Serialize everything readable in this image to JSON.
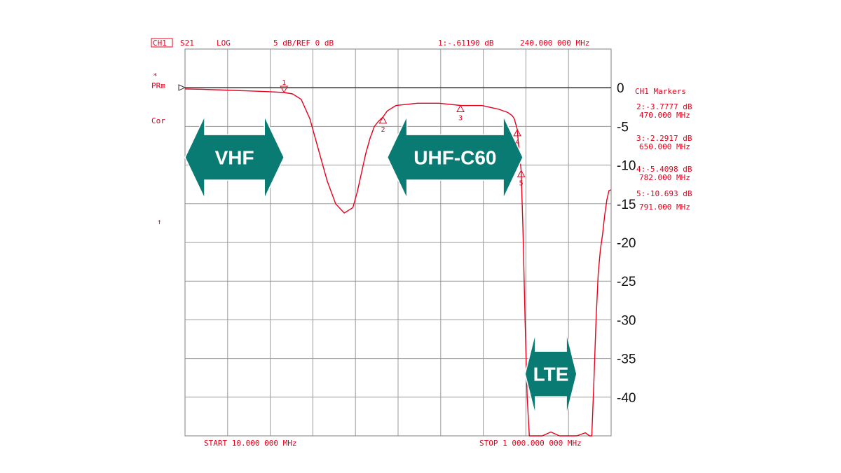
{
  "chart_data": {
    "type": "line",
    "header": {
      "channel": "CH1",
      "parameter": "S21",
      "format": "LOG",
      "scale": "5 dB/REF 0 dB",
      "active_marker": "1:-.61190 dB",
      "active_marker_freq": "240.000 000 MHz"
    },
    "side_labels": {
      "star": "*",
      "prm": "PRm",
      "cor": "Cor",
      "arrow": "↑"
    },
    "start_label": "START  10.000 000 MHz",
    "stop_label": "STOP 1 000.000 000 MHz",
    "markers_title": "CH1 Markers",
    "marker_list": [
      {
        "value": "2:-3.7777 dB",
        "freq": "470.000 MHz"
      },
      {
        "value": "3:-2.2917 dB",
        "freq": "650.000 MHz"
      },
      {
        "value": "4:-5.4098 dB",
        "freq": "782.000 MHz"
      },
      {
        "value": "5:-10.693 dB",
        "freq": "791.000 MHz"
      }
    ],
    "markers": [
      {
        "id": "1",
        "x": 240,
        "y": -0.612
      },
      {
        "id": "2",
        "x": 470,
        "y": -3.778
      },
      {
        "id": "3",
        "x": 650,
        "y": -2.292
      },
      {
        "id": "4",
        "x": 782,
        "y": -5.41
      },
      {
        "id": "5",
        "x": 791,
        "y": -10.693
      }
    ],
    "xlim": [
      10,
      1000
    ],
    "ylim": [
      -45,
      5
    ],
    "yticks": [
      0,
      -5,
      -10,
      -15,
      -20,
      -25,
      -30,
      -35,
      -40
    ],
    "ytick_labels": [
      "0",
      "-5",
      "-10",
      "-15",
      "-20",
      "-25",
      "-30",
      "-35",
      "-40"
    ],
    "grid": true,
    "series": [
      {
        "color": "#e8001c",
        "x": [
          10,
          50,
          100,
          150,
          200,
          240,
          260,
          280,
          300,
          320,
          340,
          360,
          380,
          400,
          410,
          420,
          430,
          440,
          450,
          460,
          470,
          480,
          500,
          550,
          600,
          650,
          700,
          740,
          760,
          770,
          775,
          780,
          782,
          785,
          791,
          795,
          800,
          805,
          810,
          815,
          820,
          840,
          860,
          880,
          900,
          920,
          940,
          950,
          955,
          960,
          965,
          970,
          975,
          980,
          985,
          990,
          995,
          1000
        ],
        "y": [
          -0.15,
          -0.2,
          -0.3,
          -0.4,
          -0.5,
          -0.612,
          -0.8,
          -1.5,
          -4,
          -8,
          -12,
          -15,
          -16.2,
          -15.5,
          -13.5,
          -11,
          -8.5,
          -6.5,
          -5,
          -4.3,
          -3.778,
          -3.0,
          -2.3,
          -2.0,
          -2.0,
          -2.292,
          -2.3,
          -2.8,
          -3.2,
          -3.6,
          -4.0,
          -5.0,
          -5.41,
          -7.5,
          -10.693,
          -18,
          -30,
          -40,
          -45,
          -45,
          -45,
          -45,
          -44.5,
          -45,
          -45,
          -45,
          -44.6,
          -45,
          -45,
          -38,
          -30,
          -24,
          -21,
          -19,
          -16.5,
          -14.5,
          -13.3,
          -13.2
        ]
      }
    ],
    "band_labels": [
      {
        "text": "VHF",
        "x_from": 10,
        "x_to": 240,
        "y": -9
      },
      {
        "text": "UHF-C60",
        "x_from": 480,
        "x_to": 795,
        "y": -9
      },
      {
        "text": "LTE",
        "x_from": 800,
        "x_to": 920,
        "y": -37
      }
    ]
  }
}
